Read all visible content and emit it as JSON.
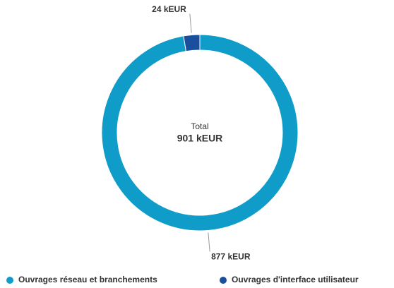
{
  "chart_data": {
    "type": "donut",
    "categories": [
      "Ouvrages réseau et branchements",
      "Ouvrages d'interface utilisateur"
    ],
    "values": [
      877,
      24
    ],
    "value_labels": [
      "877 kEUR",
      "24 kEUR"
    ],
    "colors": [
      "#0f9cc8",
      "#1a4f9e"
    ],
    "center_title": "Total",
    "center_text": "901 kEUR",
    "legend": "bottom"
  }
}
